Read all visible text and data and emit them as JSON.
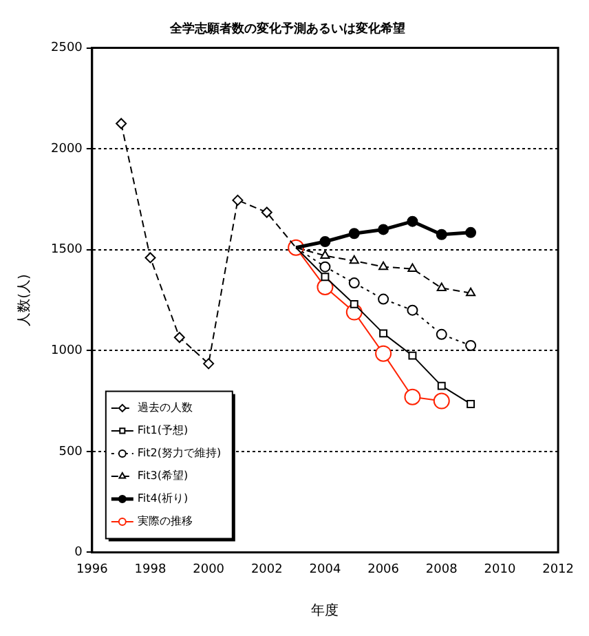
{
  "chart_data": {
    "type": "line",
    "title": "全学志願者数の変化予測あるいは変化希望",
    "xlabel": "年度",
    "ylabel": "人数(人)",
    "xlim": [
      1996,
      2012
    ],
    "xticks": [
      1996,
      1998,
      2000,
      2002,
      2004,
      2006,
      2008,
      2010,
      2012
    ],
    "ylim": [
      0,
      2500
    ],
    "yticks": [
      0,
      500,
      1000,
      1500,
      2000,
      2500
    ],
    "grid": "y",
    "legend": "bottom left",
    "series": [
      {
        "name": "過去の人数",
        "color": "#000000",
        "marker": "diamond",
        "line_style": "dashed",
        "x": [
          1997,
          1998,
          1999,
          2000,
          2001,
          2002,
          2003
        ],
        "values": [
          2125,
          1460,
          1065,
          935,
          1745,
          1685,
          1510
        ]
      },
      {
        "name": "Fit1(予想)",
        "color": "#000000",
        "marker": "square",
        "line_style": "solid",
        "x": [
          2003,
          2004,
          2005,
          2006,
          2007,
          2008,
          2009
        ],
        "values": [
          1510,
          1365,
          1230,
          1085,
          975,
          825,
          735
        ]
      },
      {
        "name": "Fit2(努力で維持)",
        "color": "#000000",
        "marker": "circle",
        "line_style": "dotted",
        "x": [
          2003,
          2004,
          2005,
          2006,
          2007,
          2008,
          2009
        ],
        "values": [
          1510,
          1415,
          1335,
          1255,
          1200,
          1080,
          1025
        ]
      },
      {
        "name": "Fit3(希望)",
        "color": "#000000",
        "marker": "triangle",
        "line_style": "dashed",
        "x": [
          2003,
          2004,
          2005,
          2006,
          2007,
          2008,
          2009
        ],
        "values": [
          1510,
          1470,
          1445,
          1415,
          1405,
          1310,
          1285
        ]
      },
      {
        "name": "Fit4(祈り)",
        "color": "#000000",
        "marker": "circle",
        "line_style": "solid",
        "x": [
          2003,
          2004,
          2005,
          2006,
          2007,
          2008,
          2009
        ],
        "values": [
          1510,
          1540,
          1580,
          1600,
          1640,
          1575,
          1585
        ]
      },
      {
        "name": "実際の推移",
        "color": "#ff2200",
        "marker": "circle",
        "line_style": "solid",
        "x": [
          2003,
          2004,
          2005,
          2006,
          2007,
          2008
        ],
        "values": [
          1510,
          1315,
          1190,
          985,
          770,
          750
        ]
      }
    ]
  }
}
